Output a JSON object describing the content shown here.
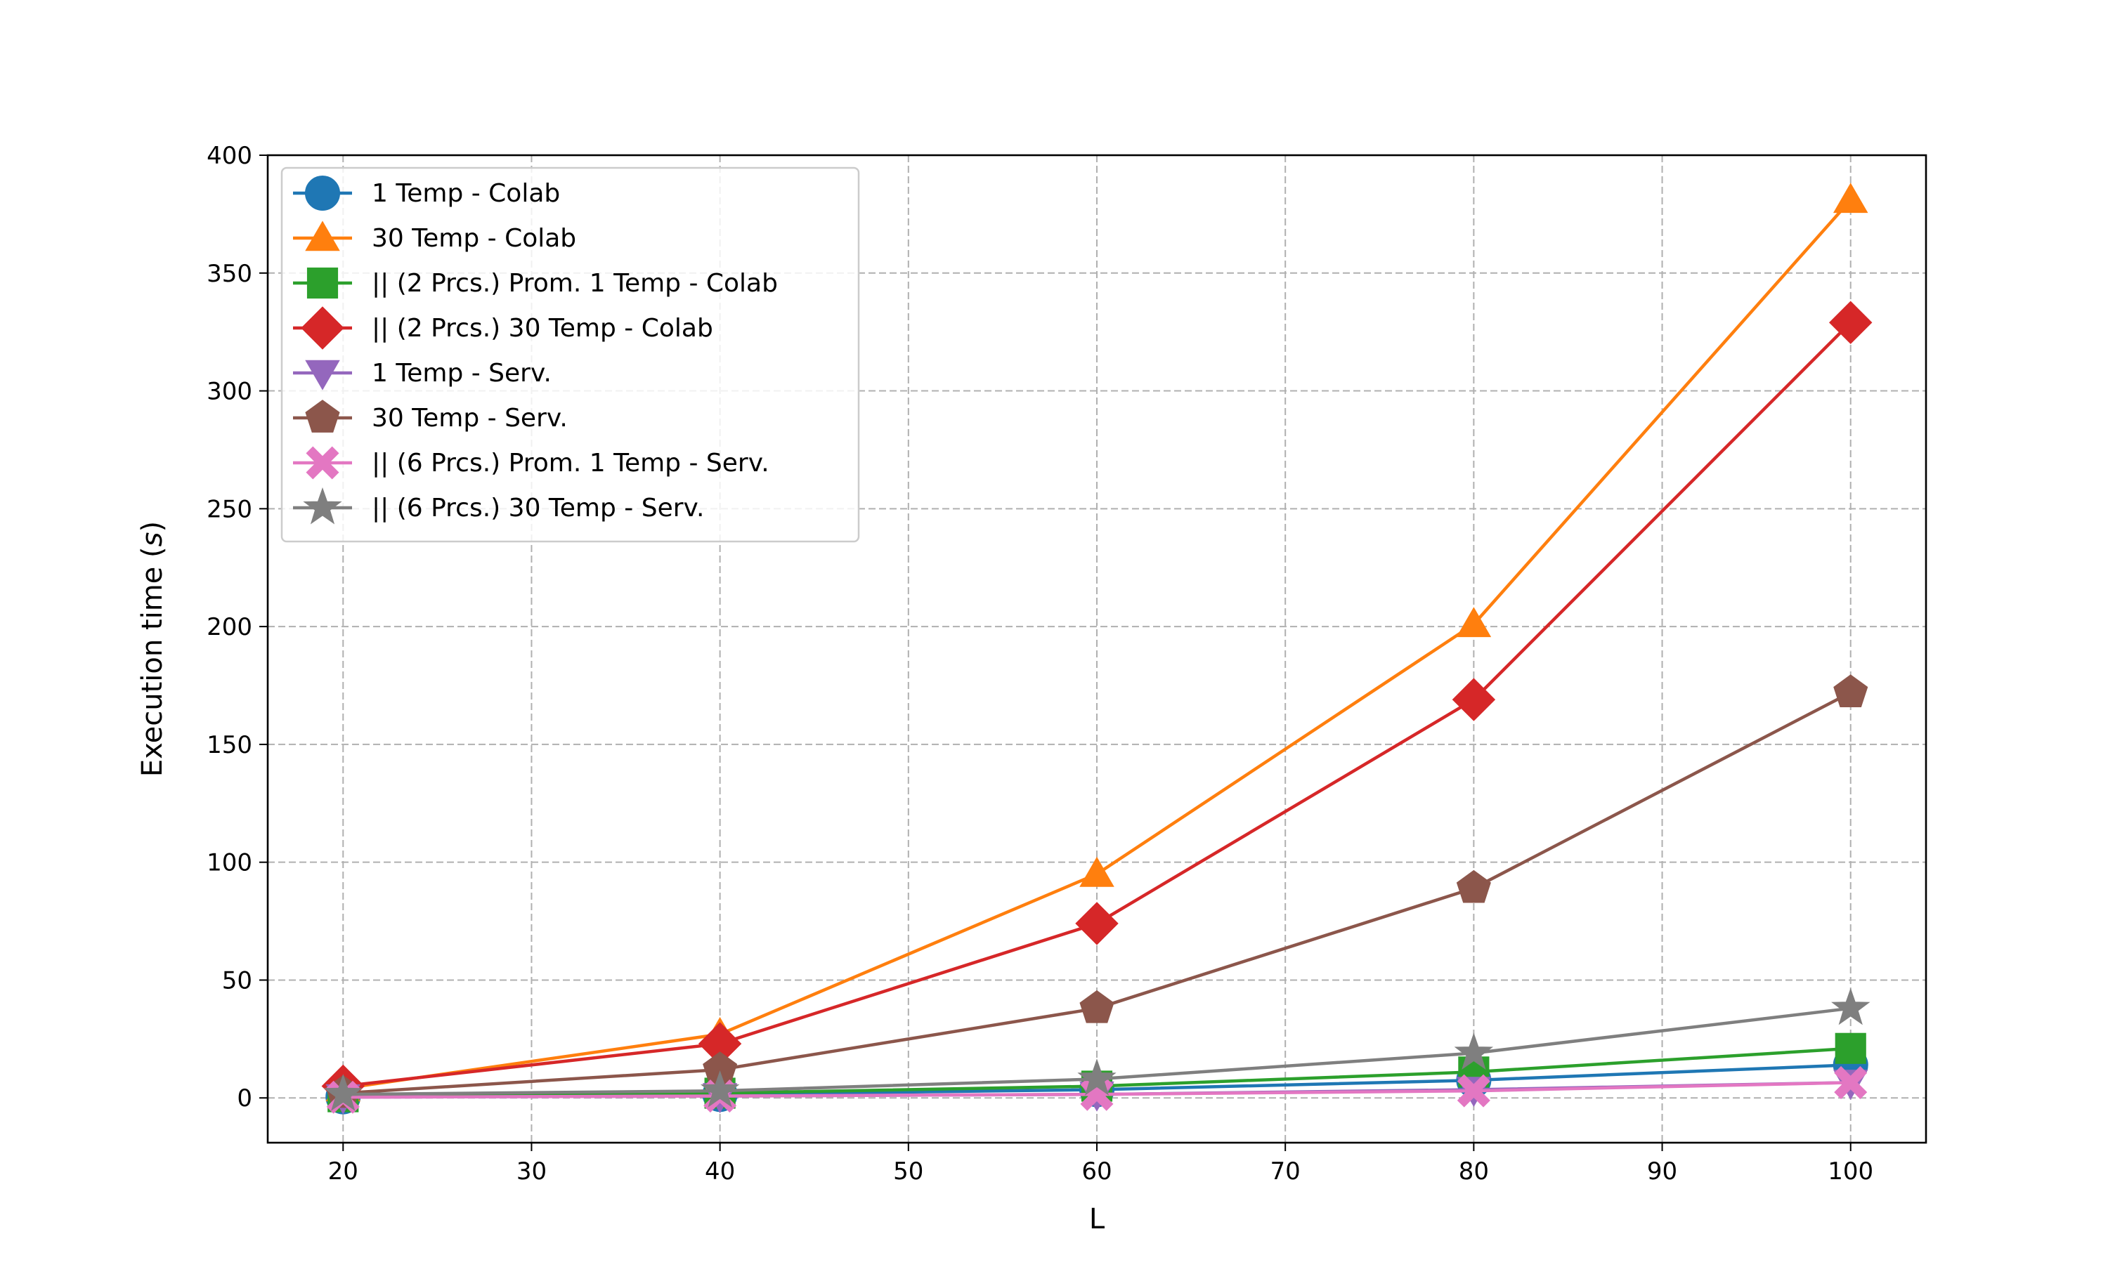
{
  "chart_data": {
    "type": "line",
    "xlabel": "L",
    "ylabel": "Execution time (s)",
    "xlim": [
      16,
      104
    ],
    "ylim": [
      -19,
      400
    ],
    "xticks": [
      20,
      30,
      40,
      50,
      60,
      70,
      80,
      90,
      100
    ],
    "yticks": [
      0,
      50,
      100,
      150,
      200,
      250,
      300,
      350,
      400
    ],
    "grid": true,
    "legend_position": "upper-left",
    "x": [
      20,
      40,
      60,
      80,
      100
    ],
    "series": [
      {
        "name": "1 Temp - Colab",
        "color": "#1f77b4",
        "marker": "circle",
        "values": [
          0.5,
          1.5,
          3.5,
          7.5,
          14
        ]
      },
      {
        "name": "30 Temp - Colab",
        "color": "#ff7f0e",
        "marker": "triangle-up",
        "values": [
          4,
          27,
          95,
          201,
          381
        ]
      },
      {
        "name": "|| (2 Prcs.) Prom. 1 Temp - Colab",
        "color": "#2ca02c",
        "marker": "square",
        "values": [
          0.5,
          2,
          5,
          11,
          21
        ]
      },
      {
        "name": "|| (2 Prcs.) 30 Temp - Colab",
        "color": "#d62728",
        "marker": "diamond",
        "values": [
          5,
          23,
          74,
          169,
          329
        ]
      },
      {
        "name": "1 Temp - Serv.",
        "color": "#9467bd",
        "marker": "triangle-down",
        "values": [
          0.3,
          0.8,
          1.5,
          3.5,
          6.5
        ]
      },
      {
        "name": "30 Temp - Serv.",
        "color": "#8c564b",
        "marker": "pentagon",
        "values": [
          2,
          12,
          38,
          89,
          172
        ]
      },
      {
        "name": "|| (6 Prcs.) Prom. 1 Temp - Serv.",
        "color": "#e377c2",
        "marker": "x-filled",
        "values": [
          0.3,
          0.8,
          1.5,
          3,
          6.5
        ]
      },
      {
        "name": "|| (6 Prcs.) 30 Temp - Serv.",
        "color": "#7f7f7f",
        "marker": "star",
        "values": [
          1.5,
          3,
          8,
          19,
          38
        ]
      }
    ]
  }
}
